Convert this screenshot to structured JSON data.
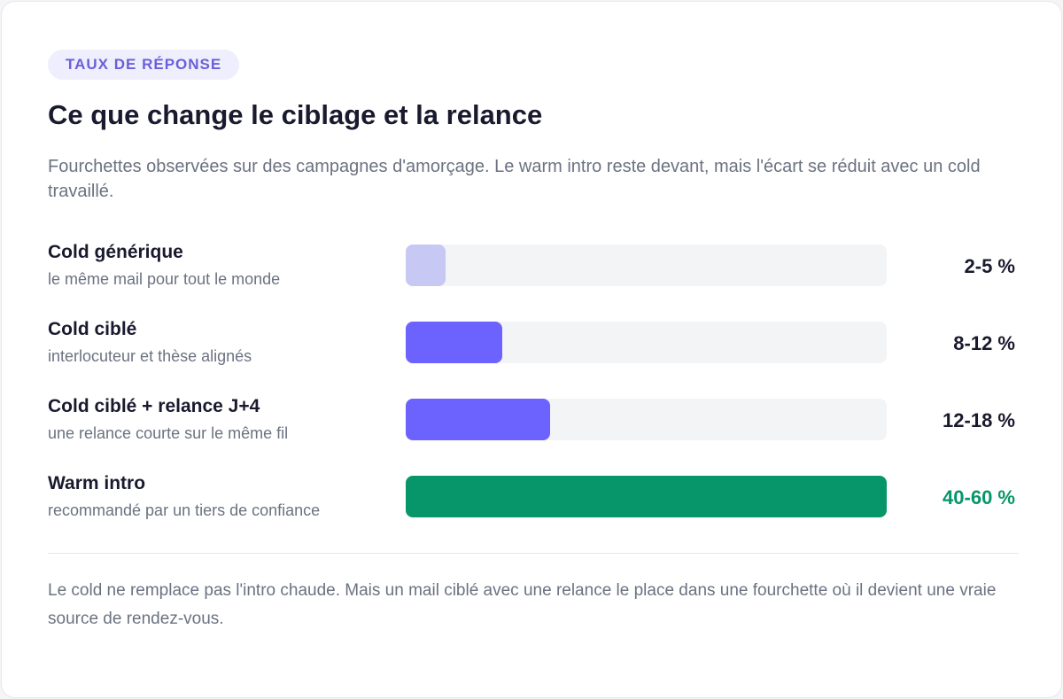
{
  "badge": "TAUX DE RÉPONSE",
  "chart_data": {
    "type": "bar",
    "orientation": "horizontal",
    "title": "Ce que change le ciblage et la relance",
    "subtitle": "Fourchettes observées sur des campagnes d'amorçage. Le warm intro reste devant, mais l'écart se réduit avec un cold travaillé.",
    "categories": [
      "Cold générique",
      "Cold ciblé",
      "Cold ciblé + relance J+4",
      "Warm intro"
    ],
    "descriptions": [
      "le même mail pour tout le monde",
      "interlocuteur et thèse alignés",
      "une relance courte sur le même fil",
      "recommandé par un tiers de confiance"
    ],
    "values": [
      5,
      12,
      18,
      60
    ],
    "value_labels": [
      "2-5 %",
      "8-12 %",
      "12-18 %",
      "40-60 %"
    ],
    "colors": [
      "#c7c8f4",
      "#6c63ff",
      "#6c63ff",
      "#079669"
    ],
    "value_label_colors": [
      "#1a1a2e",
      "#1a1a2e",
      "#1a1a2e",
      "#079669"
    ],
    "xlim": [
      0,
      60
    ]
  },
  "footnote": "Le cold ne remplace pas l'intro chaude. Mais un mail ciblé avec une relance le place dans une fourchette où il devient une vraie source de rendez-vous."
}
